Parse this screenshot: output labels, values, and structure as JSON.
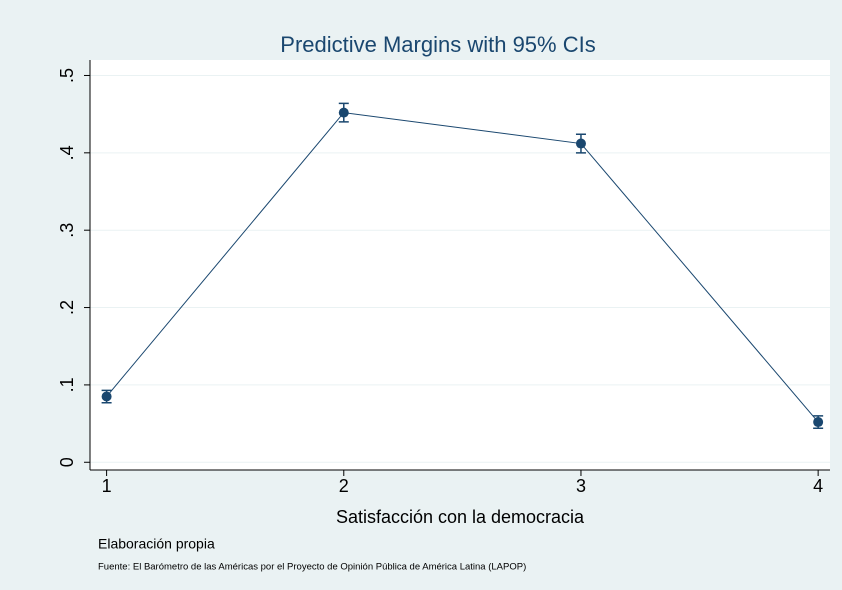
{
  "chart_data": {
    "type": "line",
    "title": "Predictive Margins with 95% CIs",
    "xlabel": "Satisfacción con la democracia",
    "notes": [
      "Elaboración propia",
      "Fuente: El Barómetro de las Américas por el Proyecto de Opinión Pública de América Latina (LAPOP)"
    ],
    "x": [
      1,
      2,
      3,
      4
    ],
    "series": [
      {
        "color": "#1a476f",
        "values": [
          0.085,
          0.452,
          0.412,
          0.052
        ],
        "errors": [
          0.008,
          0.012,
          0.012,
          0.008
        ]
      }
    ],
    "xlim": [
      0.93,
      4.05
    ],
    "xticks": [
      1,
      2,
      3,
      4
    ],
    "ylim": [
      -0.01,
      0.52
    ],
    "yticks": [
      0,
      {
        "value": 0.1,
        "label": ".1"
      },
      {
        "value": 0.2,
        "label": ".2"
      },
      {
        "value": 0.3,
        "label": ".3"
      },
      {
        "value": 0.4,
        "label": ".4"
      },
      {
        "value": 0.5,
        "label": ".5"
      }
    ],
    "grid": true
  }
}
